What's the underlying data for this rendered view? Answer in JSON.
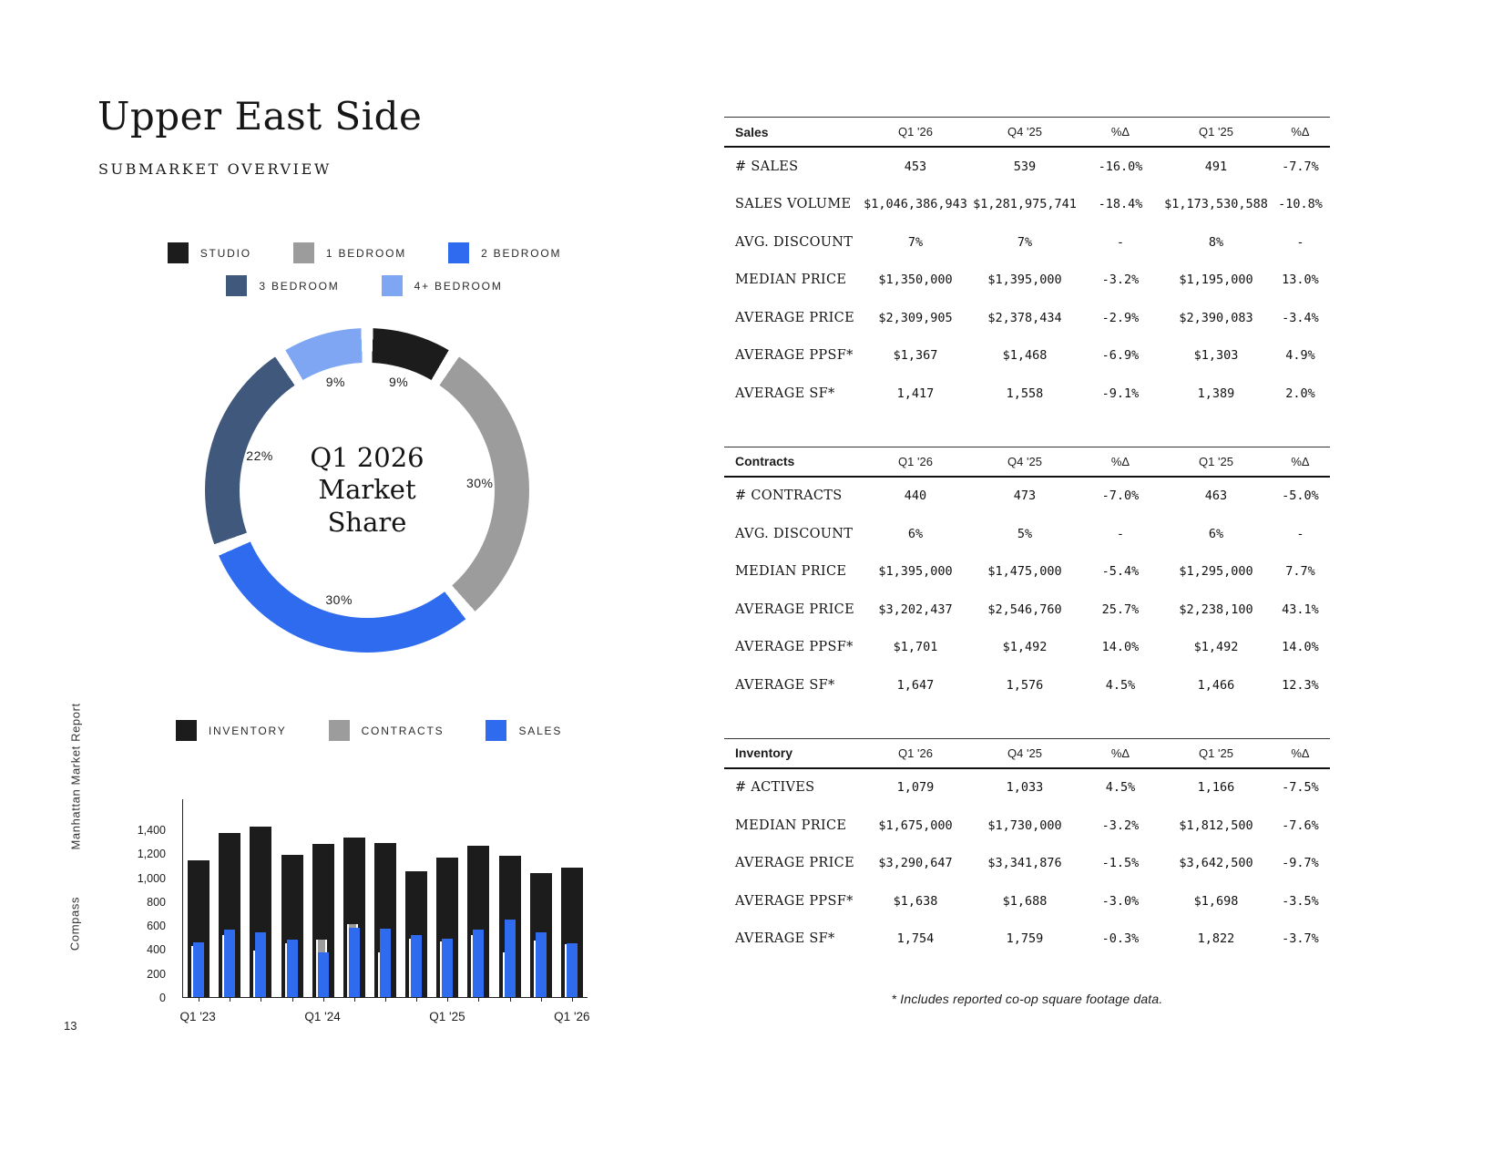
{
  "page": {
    "title": "Upper East Side",
    "subtitle": "SUBMARKET OVERVIEW",
    "page_number": "13",
    "brand": "Compass",
    "report_name": "Manhattan Market Report",
    "footnote": "* Includes reported co-op square footage data."
  },
  "colors": {
    "ink": "#1c1c1c",
    "gray": "#9c9c9c",
    "blue": "#2e6bee",
    "navy": "#41587d",
    "light_blue": "#7ea6f2"
  },
  "chart_data": [
    {
      "id": "market-share-donut",
      "type": "pie",
      "title": "Q1 2026 Market Share",
      "center_label": "Q1 2026\nMarket\nShare",
      "legend_rows": [
        [
          "STUDIO",
          "1 BEDROOM",
          "2 BEDROOM"
        ],
        [
          "3 BEDROOM",
          "4+ BEDROOM"
        ]
      ],
      "slices": [
        {
          "label": "STUDIO",
          "value": 9,
          "color": "#1c1c1c"
        },
        {
          "label": "1 BEDROOM",
          "value": 30,
          "color": "#9c9c9c"
        },
        {
          "label": "2 BEDROOM",
          "value": 30,
          "color": "#2e6bee"
        },
        {
          "label": "3 BEDROOM",
          "value": 22,
          "color": "#41587d"
        },
        {
          "label": "4+ BEDROOM",
          "value": 9,
          "color": "#7ea6f2"
        }
      ]
    },
    {
      "id": "quarterly-activity-bars",
      "type": "bar",
      "x": [
        "Q1 '23",
        "Q2 '23",
        "Q3 '23",
        "Q4 '23",
        "Q1 '24",
        "Q2 '24",
        "Q3 '24",
        "Q4 '24",
        "Q1 '25",
        "Q2 '25",
        "Q3 '25",
        "Q4 '25",
        "Q1 '26"
      ],
      "x_tick_labels": [
        "Q1 '23",
        "Q1 '24",
        "Q1 '25",
        "Q1 '26"
      ],
      "ylim": [
        0,
        1400
      ],
      "yticks": [
        "0",
        "200",
        "400",
        "600",
        "800",
        "1,000",
        "1,200",
        "1,400"
      ],
      "legend_position": "top",
      "grid": false,
      "series": [
        {
          "name": "INVENTORY",
          "color": "#1c1c1c",
          "values": [
            1140,
            1370,
            1420,
            1190,
            1280,
            1330,
            1290,
            1050,
            1166,
            1260,
            1180,
            1033,
            1079
          ]
        },
        {
          "name": "CONTRACTS",
          "color": "#9c9c9c",
          "values": [
            430,
            520,
            390,
            450,
            480,
            610,
            370,
            490,
            463,
            520,
            370,
            473,
            440
          ]
        },
        {
          "name": "SALES",
          "color": "#2e6bee",
          "values": [
            460,
            560,
            540,
            480,
            370,
            575,
            570,
            520,
            491,
            565,
            650,
            539,
            453
          ]
        }
      ]
    }
  ],
  "tables": [
    {
      "name": "Sales",
      "columns": [
        "Q1 '26",
        "Q4 '25",
        "%Δ",
        "Q1 '25",
        "%Δ"
      ],
      "rows": [
        {
          "label": "# SALES",
          "values": [
            "453",
            "539",
            "-16.0%",
            "491",
            "-7.7%"
          ]
        },
        {
          "label": "SALES VOLUME",
          "values": [
            "$1,046,386,943",
            "$1,281,975,741",
            "-18.4%",
            "$1,173,530,588",
            "-10.8%"
          ]
        },
        {
          "label": "AVG. DISCOUNT",
          "values": [
            "7%",
            "7%",
            "-",
            "8%",
            "-"
          ]
        },
        {
          "label": "MEDIAN PRICE",
          "values": [
            "$1,350,000",
            "$1,395,000",
            "-3.2%",
            "$1,195,000",
            "13.0%"
          ]
        },
        {
          "label": "AVERAGE PRICE",
          "values": [
            "$2,309,905",
            "$2,378,434",
            "-2.9%",
            "$2,390,083",
            "-3.4%"
          ]
        },
        {
          "label": "AVERAGE PPSF*",
          "values": [
            "$1,367",
            "$1,468",
            "-6.9%",
            "$1,303",
            "4.9%"
          ]
        },
        {
          "label": "AVERAGE SF*",
          "values": [
            "1,417",
            "1,558",
            "-9.1%",
            "1,389",
            "2.0%"
          ]
        }
      ]
    },
    {
      "name": "Contracts",
      "columns": [
        "Q1 '26",
        "Q4 '25",
        "%Δ",
        "Q1 '25",
        "%Δ"
      ],
      "rows": [
        {
          "label": "# CONTRACTS",
          "values": [
            "440",
            "473",
            "-7.0%",
            "463",
            "-5.0%"
          ]
        },
        {
          "label": "AVG. DISCOUNT",
          "values": [
            "6%",
            "5%",
            "-",
            "6%",
            "-"
          ]
        },
        {
          "label": "MEDIAN PRICE",
          "values": [
            "$1,395,000",
            "$1,475,000",
            "-5.4%",
            "$1,295,000",
            "7.7%"
          ]
        },
        {
          "label": "AVERAGE PRICE",
          "values": [
            "$3,202,437",
            "$2,546,760",
            "25.7%",
            "$2,238,100",
            "43.1%"
          ]
        },
        {
          "label": "AVERAGE PPSF*",
          "values": [
            "$1,701",
            "$1,492",
            "14.0%",
            "$1,492",
            "14.0%"
          ]
        },
        {
          "label": "AVERAGE SF*",
          "values": [
            "1,647",
            "1,576",
            "4.5%",
            "1,466",
            "12.3%"
          ]
        }
      ]
    },
    {
      "name": "Inventory",
      "columns": [
        "Q1 '26",
        "Q4 '25",
        "%Δ",
        "Q1 '25",
        "%Δ"
      ],
      "rows": [
        {
          "label": "# ACTIVES",
          "values": [
            "1,079",
            "1,033",
            "4.5%",
            "1,166",
            "-7.5%"
          ]
        },
        {
          "label": "MEDIAN PRICE",
          "values": [
            "$1,675,000",
            "$1,730,000",
            "-3.2%",
            "$1,812,500",
            "-7.6%"
          ]
        },
        {
          "label": "AVERAGE PRICE",
          "values": [
            "$3,290,647",
            "$3,341,876",
            "-1.5%",
            "$3,642,500",
            "-9.7%"
          ]
        },
        {
          "label": "AVERAGE PPSF*",
          "values": [
            "$1,638",
            "$1,688",
            "-3.0%",
            "$1,698",
            "-3.5%"
          ]
        },
        {
          "label": "AVERAGE SF*",
          "values": [
            "1,754",
            "1,759",
            "-0.3%",
            "1,822",
            "-3.7%"
          ]
        }
      ]
    }
  ]
}
